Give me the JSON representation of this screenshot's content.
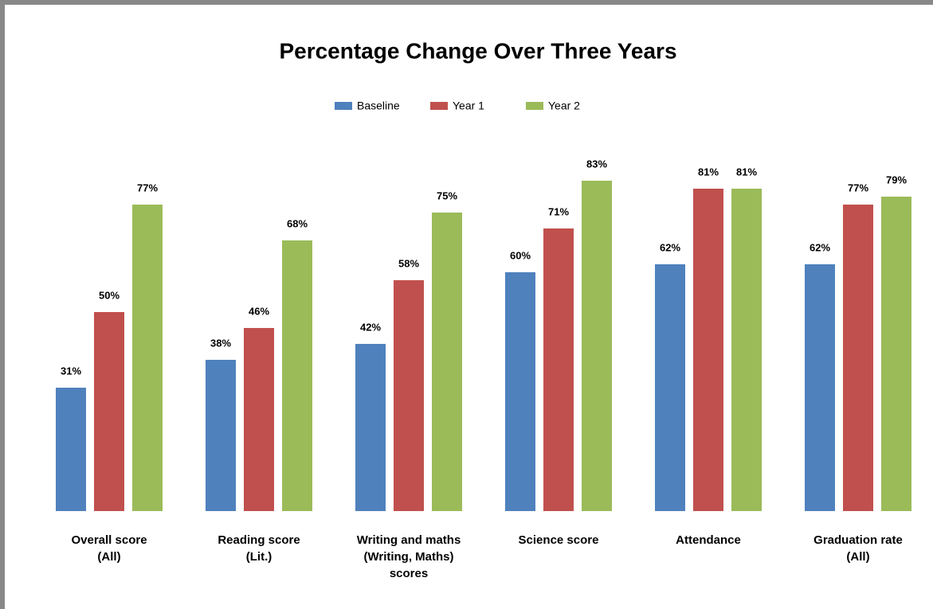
{
  "chart_data": {
    "type": "bar",
    "title": "Percentage Change Over Three Years",
    "categories": [
      "Overall score\n(All)",
      "Reading score\n(Lit.)",
      "Writing and maths\n(Writing, Maths)\nscores",
      "Science score",
      "Attendance",
      "Graduation rate\n(All)"
    ],
    "series": [
      {
        "name": "Baseline",
        "color": "#4f81bd",
        "values": [
          31,
          38,
          42,
          60,
          62,
          62
        ],
        "value_labels": [
          "31%",
          "38%",
          "42%",
          "60%",
          "62%",
          "62%"
        ]
      },
      {
        "name": "Year 1",
        "color": "#c0504d",
        "values": [
          50,
          46,
          58,
          71,
          81,
          77
        ],
        "value_labels": [
          "50%",
          "46%",
          "58%",
          "71%",
          "81%",
          "77%"
        ]
      },
      {
        "name": "Year 2",
        "color": "#9bbb59",
        "values": [
          77,
          68,
          75,
          83,
          81,
          79
        ],
        "value_labels": [
          "77%",
          "68%",
          "75%",
          "83%",
          "81%",
          "79%"
        ]
      }
    ]
  }
}
